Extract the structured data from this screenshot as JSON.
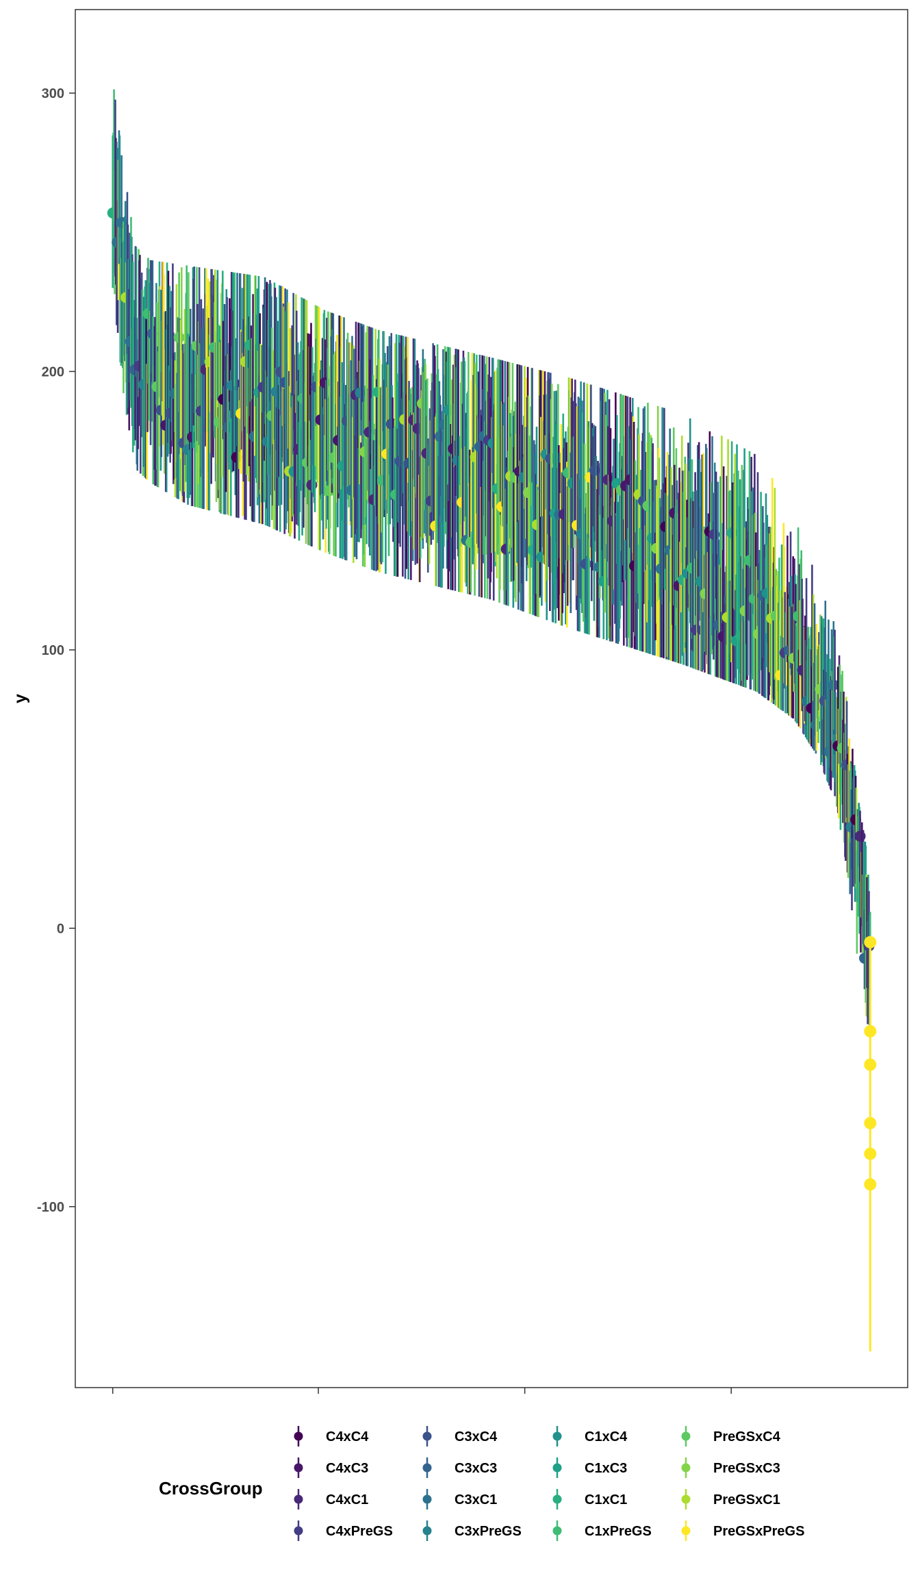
{
  "chart_data": {
    "type": "scatter",
    "title": "",
    "xlabel": "",
    "ylabel": "y",
    "ylim": [
      -165,
      330
    ],
    "yticks": [
      -100,
      0,
      100,
      200,
      300
    ],
    "ytick_labels": [
      "-100",
      "0",
      "100",
      "200",
      "300"
    ],
    "xlim": [
      0,
      1
    ],
    "xticks": [
      0.045,
      0.292,
      0.54,
      0.788
    ],
    "xtick_labels": [
      "",
      "",
      "",
      ""
    ],
    "grid": false,
    "legend": {
      "title": "CrossGroup",
      "placement": "bottom",
      "columns": [
        [
          "C4xC4",
          "C4xC3",
          "C4xC1",
          "C4xPreGS"
        ],
        [
          "C3xC4",
          "C3xC3",
          "C3xC1",
          "C3xPreGS"
        ],
        [
          "C1xC4",
          "C1xC3",
          "C1xC1",
          "C1xPreGS"
        ],
        [
          "PreGSxC4",
          "PreGSxC3",
          "PreGSxC1",
          "PreGSxPreGS"
        ]
      ]
    },
    "series": [
      {
        "name": "C4xC4",
        "color": "#440154"
      },
      {
        "name": "C4xC3",
        "color": "#481668"
      },
      {
        "name": "C4xC1",
        "color": "#482878"
      },
      {
        "name": "C4xPreGS",
        "color": "#433d84"
      },
      {
        "name": "C3xC4",
        "color": "#3b528b"
      },
      {
        "name": "C3xC3",
        "color": "#32648e"
      },
      {
        "name": "C3xC1",
        "color": "#2c728e"
      },
      {
        "name": "C3xPreGS",
        "color": "#26828e"
      },
      {
        "name": "C1xC4",
        "color": "#21918c"
      },
      {
        "name": "C1xC3",
        "color": "#1fa088"
      },
      {
        "name": "C1xC1",
        "color": "#28ae80"
      },
      {
        "name": "C1xPreGS",
        "color": "#3fbc73"
      },
      {
        "name": "PreGSxC4",
        "color": "#5ec962"
      },
      {
        "name": "PreGSxC3",
        "color": "#84d44b"
      },
      {
        "name": "PreGSxC1",
        "color": "#addc30"
      },
      {
        "name": "PreGSxPreGS",
        "color": "#fde725"
      }
    ],
    "profile": {
      "x": [
        0.0,
        0.015,
        0.03,
        0.05,
        0.1,
        0.2,
        0.28,
        0.35,
        0.5,
        0.6,
        0.75,
        0.85,
        0.9,
        0.93,
        0.955,
        0.97,
        0.985,
        1.0
      ],
      "center": [
        265,
        225,
        205,
        198,
        194,
        188,
        180,
        172,
        158,
        148,
        132,
        115,
        100,
        85,
        70,
        50,
        20,
        -10
      ],
      "upper": [
        305,
        272,
        245,
        240,
        238,
        234,
        222,
        215,
        205,
        198,
        185,
        170,
        150,
        125,
        108,
        80,
        45,
        20
      ],
      "lower": [
        230,
        190,
        165,
        160,
        152,
        145,
        135,
        128,
        118,
        108,
        95,
        85,
        75,
        62,
        45,
        20,
        -15,
        -40
      ]
    },
    "tail_points": [
      -5,
      -37,
      -49,
      -70,
      -81,
      -92
    ],
    "tail_error": [
      -125,
      -152
    ]
  }
}
